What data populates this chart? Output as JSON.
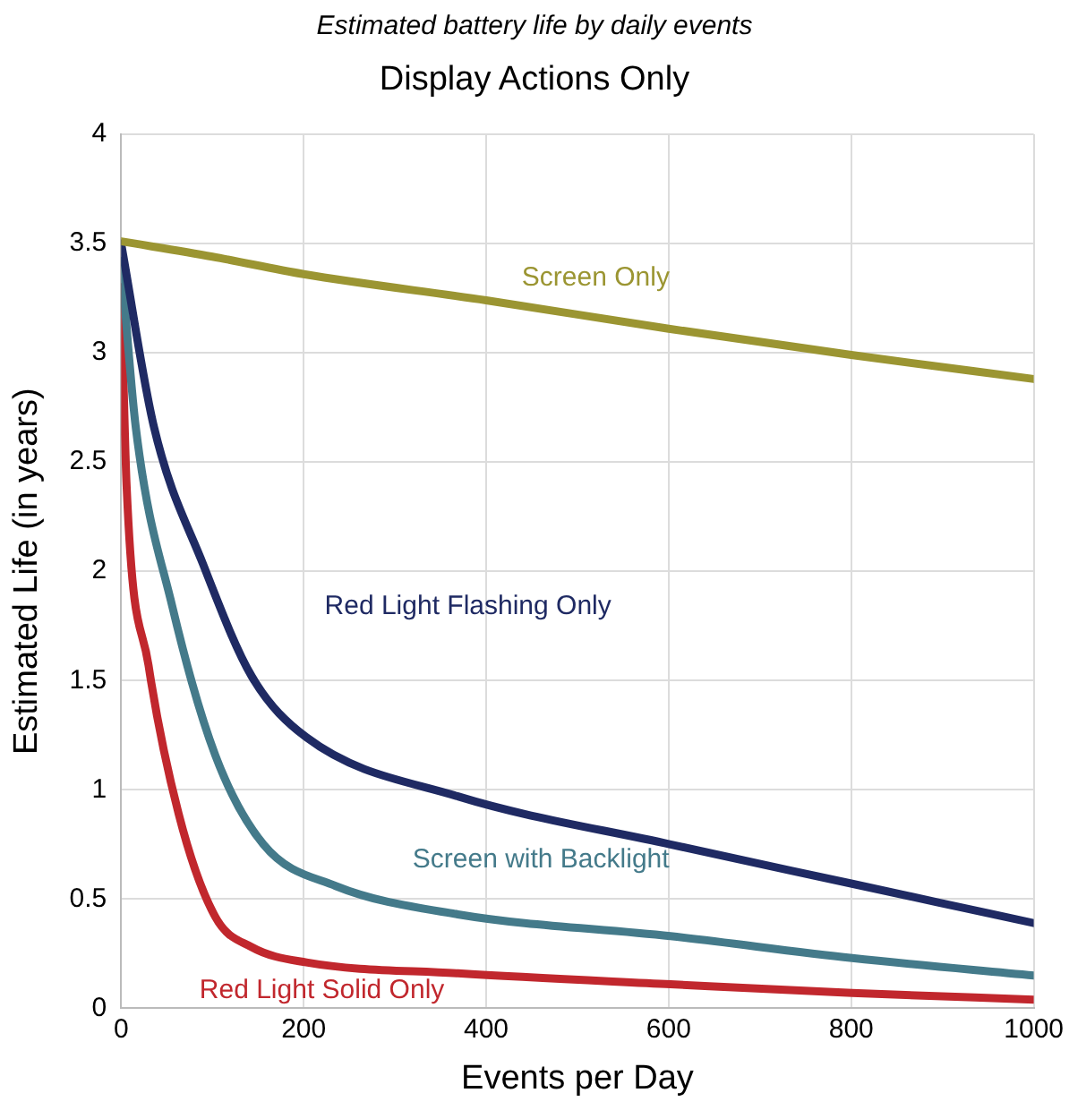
{
  "chart_data": {
    "type": "line",
    "title": "Estimated battery life by daily events",
    "subtitle": "Display Actions Only",
    "xlabel": "Events per Day",
    "ylabel": "Estimated Life (in years)",
    "xlim": [
      0,
      1000
    ],
    "xticks": [
      0,
      200,
      400,
      600,
      800,
      1000
    ],
    "ylim": [
      0,
      4
    ],
    "yticks": [
      0,
      0.5,
      1,
      1.5,
      2,
      2.5,
      3,
      3.5,
      4
    ],
    "grid": true,
    "legend": false,
    "marker": "none",
    "line_style": "solid",
    "series": [
      {
        "name": "Screen Only",
        "color": "#9b9532",
        "x": [
          0,
          100,
          200,
          400,
          600,
          800,
          1000
        ],
        "values": [
          3.51,
          3.44,
          3.36,
          3.24,
          3.11,
          2.99,
          2.88
        ]
      },
      {
        "name": "Red Light Flashing Only",
        "color": "#1f2a63",
        "x": [
          0,
          36,
          90,
          143,
          203,
          369,
          602,
          801,
          1000
        ],
        "values": [
          3.5,
          2.66,
          2.03,
          1.52,
          1.24,
          0.97,
          0.75,
          0.57,
          0.39
        ]
      },
      {
        "name": "Screen with Backlight",
        "color": "#447a8a",
        "x": [
          0,
          16,
          56,
          103,
          156,
          235,
          369,
          602,
          801,
          1000
        ],
        "values": [
          3.42,
          2.66,
          1.84,
          1.16,
          0.75,
          0.56,
          0.43,
          0.33,
          0.23,
          0.15
        ]
      },
      {
        "name": "Red Light Solid Only",
        "color": "#c1272d",
        "x": [
          0,
          6,
          30,
          63,
          103,
          143,
          203,
          369,
          602,
          801,
          1000
        ],
        "values": [
          3.3,
          2.39,
          1.57,
          0.89,
          0.42,
          0.28,
          0.21,
          0.16,
          0.11,
          0.07,
          0.04
        ]
      }
    ]
  }
}
